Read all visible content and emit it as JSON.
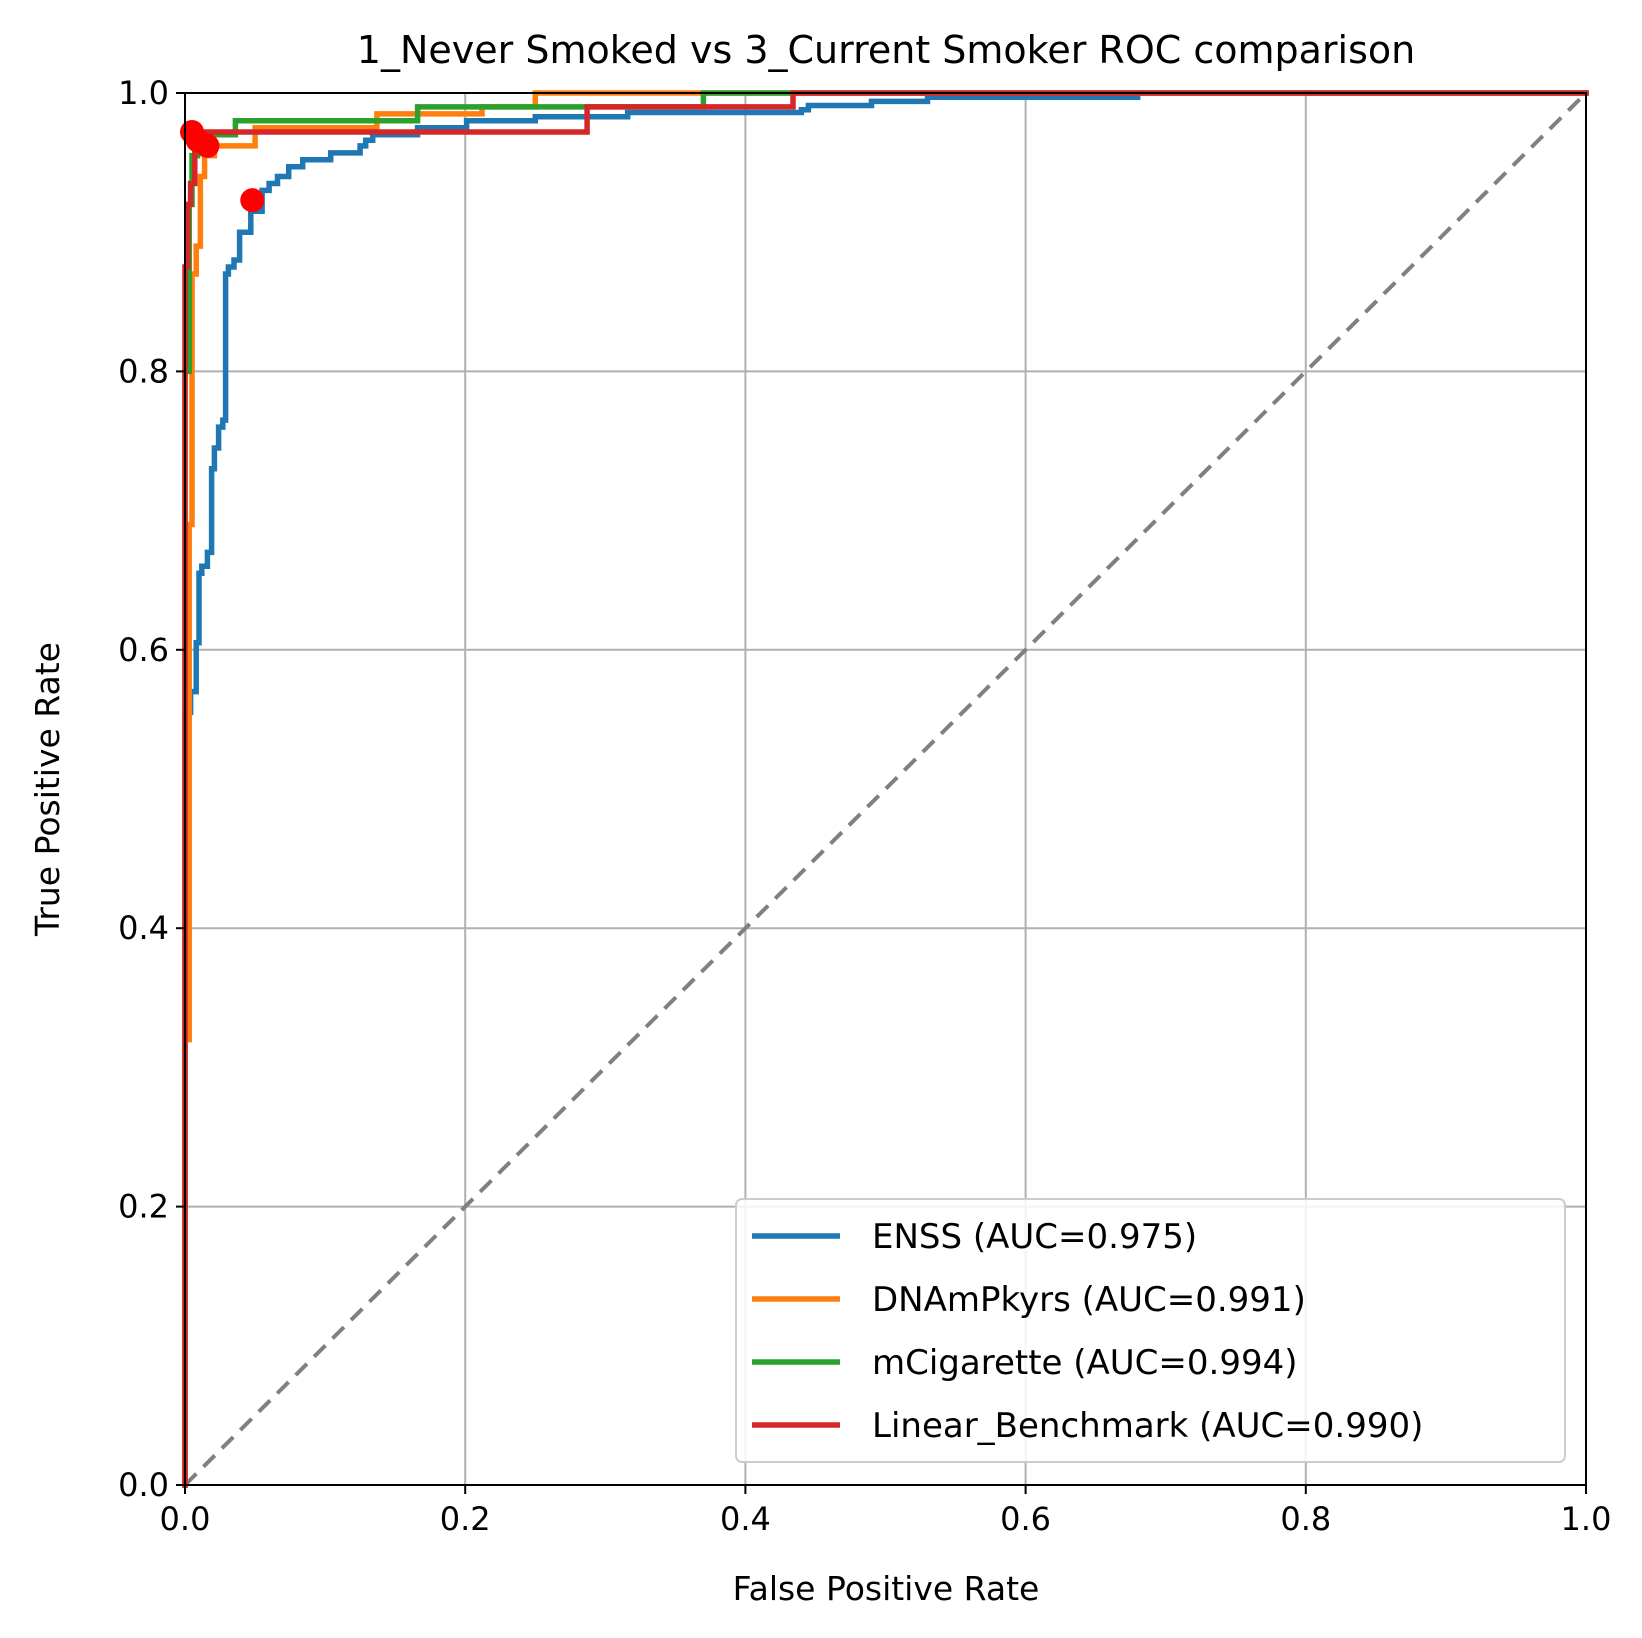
{
  "chart_data": {
    "type": "line",
    "title": "1_Never Smoked vs 3_Current Smoker ROC comparison",
    "xlabel": "False Positive Rate",
    "ylabel": "True Positive Rate",
    "xlim": [
      0,
      1
    ],
    "ylim": [
      0,
      1
    ],
    "x_ticks": [
      "0.0",
      "0.2",
      "0.4",
      "0.6",
      "0.8",
      "1.0"
    ],
    "y_ticks": [
      "0.0",
      "0.2",
      "0.4",
      "0.6",
      "0.8",
      "1.0"
    ],
    "grid": true,
    "legend_position": "lower-right",
    "series": [
      {
        "name": "ENSS (AUC=0.975)",
        "color": "#1f77b4",
        "x": [
          0.0,
          0.0,
          0.004,
          0.004,
          0.008,
          0.008,
          0.01,
          0.01,
          0.012,
          0.012,
          0.016,
          0.016,
          0.019,
          0.019,
          0.021,
          0.021,
          0.024,
          0.024,
          0.027,
          0.027,
          0.029,
          0.029,
          0.031,
          0.031,
          0.035,
          0.035,
          0.039,
          0.039,
          0.047,
          0.047,
          0.055,
          0.055,
          0.06,
          0.06,
          0.066,
          0.066,
          0.074,
          0.074,
          0.084,
          0.084,
          0.104,
          0.104,
          0.125,
          0.125,
          0.129,
          0.129,
          0.134,
          0.134,
          0.166,
          0.166,
          0.201,
          0.201,
          0.25,
          0.25,
          0.316,
          0.316,
          0.44,
          0.44,
          0.445,
          0.445,
          0.49,
          0.49,
          0.53,
          0.53,
          0.68
        ],
        "y": [
          0.0,
          0.555,
          0.555,
          0.57,
          0.57,
          0.605,
          0.605,
          0.655,
          0.655,
          0.66,
          0.66,
          0.67,
          0.67,
          0.73,
          0.73,
          0.745,
          0.745,
          0.76,
          0.76,
          0.765,
          0.765,
          0.87,
          0.87,
          0.875,
          0.875,
          0.88,
          0.88,
          0.9,
          0.9,
          0.915,
          0.915,
          0.93,
          0.93,
          0.935,
          0.935,
          0.94,
          0.94,
          0.947,
          0.947,
          0.952,
          0.952,
          0.957,
          0.957,
          0.962,
          0.962,
          0.966,
          0.966,
          0.97,
          0.97,
          0.975,
          0.975,
          0.98,
          0.98,
          0.983,
          0.983,
          0.986,
          0.986,
          0.988,
          0.988,
          0.991,
          0.991,
          0.994,
          0.994,
          0.997,
          0.997
        ]
      },
      {
        "name": "DNAmPkyrs (AUC=0.991)",
        "color": "#ff7f0e",
        "x": [
          0.0,
          0.0,
          0.003,
          0.003,
          0.005,
          0.005,
          0.008,
          0.008,
          0.011,
          0.011,
          0.014,
          0.014,
          0.021,
          0.021,
          0.05,
          0.05,
          0.137,
          0.137,
          0.212,
          0.212,
          0.25,
          0.25,
          1.0
        ],
        "y": [
          0.0,
          0.32,
          0.32,
          0.69,
          0.69,
          0.87,
          0.87,
          0.89,
          0.89,
          0.94,
          0.94,
          0.955,
          0.955,
          0.962,
          0.962,
          0.975,
          0.975,
          0.985,
          0.985,
          0.99,
          0.99,
          1.0,
          1.0
        ]
      },
      {
        "name": "mCigarette (AUC=0.994)",
        "color": "#2ca02c",
        "x": [
          0.0,
          0.0,
          0.003,
          0.003,
          0.005,
          0.005,
          0.009,
          0.009,
          0.036,
          0.036,
          0.166,
          0.166,
          0.37,
          0.37,
          1.0
        ],
        "y": [
          0.0,
          0.8,
          0.8,
          0.92,
          0.92,
          0.955,
          0.955,
          0.97,
          0.97,
          0.98,
          0.98,
          0.99,
          0.99,
          1.0,
          1.0
        ]
      },
      {
        "name": "Linear_Benchmark (AUC=0.990)",
        "color": "#d62728",
        "x": [
          0.0,
          0.0,
          0.002,
          0.002,
          0.004,
          0.004,
          0.007,
          0.007,
          0.011,
          0.011,
          0.287,
          0.287,
          0.434,
          0.434,
          1.0
        ],
        "y": [
          0.0,
          0.875,
          0.875,
          0.92,
          0.92,
          0.935,
          0.935,
          0.96,
          0.96,
          0.972,
          0.972,
          0.99,
          0.99,
          1.0,
          1.0
        ]
      }
    ],
    "reference_line": {
      "x": [
        0,
        1
      ],
      "y": [
        0,
        1
      ],
      "color": "#808080",
      "style": "dashed"
    },
    "markers": {
      "color": "#ff0000",
      "points": [
        {
          "x": 0.048,
          "y": 0.923
        },
        {
          "x": 0.005,
          "y": 0.972
        },
        {
          "x": 0.009,
          "y": 0.966
        },
        {
          "x": 0.016,
          "y": 0.962
        }
      ]
    }
  }
}
